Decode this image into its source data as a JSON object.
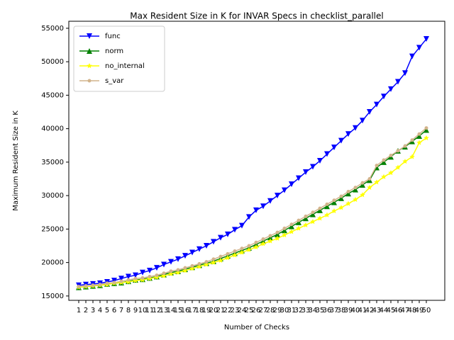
{
  "chart_data": {
    "type": "line",
    "title": "Max Resident Size in K for INVAR Specs in checklist_parallel",
    "x_label": "Number of Checks",
    "y_label": "Maximum Resident Size in K",
    "x": [
      1,
      2,
      3,
      4,
      5,
      6,
      7,
      8,
      9,
      10,
      11,
      12,
      13,
      14,
      15,
      16,
      17,
      18,
      19,
      20,
      21,
      22,
      23,
      24,
      25,
      26,
      27,
      28,
      29,
      30,
      31,
      32,
      33,
      34,
      35,
      36,
      37,
      38,
      39,
      40,
      41,
      42,
      43,
      44,
      45,
      46,
      47,
      48,
      49,
      50
    ],
    "xlim": [
      -0.4,
      52.6
    ],
    "xticks": [
      1,
      2,
      3,
      4,
      5,
      6,
      7,
      8,
      9,
      10,
      11,
      12,
      13,
      14,
      15,
      16,
      17,
      18,
      19,
      20,
      21,
      22,
      23,
      24,
      25,
      26,
      27,
      28,
      29,
      30,
      31,
      32,
      33,
      34,
      35,
      36,
      37,
      38,
      39,
      40,
      41,
      42,
      43,
      44,
      45,
      46,
      47,
      48,
      49,
      50
    ],
    "ylim": [
      14350,
      56050
    ],
    "yticks": [
      15000,
      20000,
      25000,
      30000,
      35000,
      40000,
      45000,
      50000,
      55000
    ],
    "legend": "upper left",
    "series": [
      {
        "name": "func",
        "color": "#0000ff",
        "marker": "v",
        "values": [
          16600,
          16700,
          16800,
          16900,
          17100,
          17300,
          17600,
          17900,
          18100,
          18500,
          18800,
          19200,
          19700,
          20100,
          20500,
          21000,
          21500,
          22000,
          22500,
          23100,
          23700,
          24200,
          24900,
          25500,
          26800,
          27800,
          28400,
          29200,
          30000,
          30800,
          31700,
          32600,
          33500,
          34300,
          35200,
          36200,
          37200,
          38200,
          39200,
          40100,
          41200,
          42500,
          43600,
          44800,
          45900,
          47000,
          48300,
          50800,
          52100,
          53400
        ]
      },
      {
        "name": "norm",
        "color": "#008000",
        "marker": "^",
        "values": [
          16300,
          16400,
          16500,
          16600,
          16800,
          16900,
          17000,
          17200,
          17400,
          17500,
          17700,
          17900,
          18200,
          18500,
          18700,
          19000,
          19300,
          19600,
          19900,
          20200,
          20600,
          21000,
          21400,
          21800,
          22200,
          22700,
          23200,
          23700,
          24200,
          24800,
          25400,
          26000,
          26600,
          27200,
          27800,
          28400,
          29000,
          29600,
          30300,
          30900,
          31600,
          32300,
          34200,
          35000,
          35800,
          36700,
          37300,
          38100,
          38900,
          39800
        ]
      },
      {
        "name": "no_internal",
        "color": "#ffff00",
        "marker": "*",
        "values": [
          16300,
          16400,
          16500,
          16600,
          16700,
          16900,
          17000,
          17100,
          17300,
          17400,
          17600,
          17800,
          18000,
          18300,
          18500,
          18800,
          19100,
          19400,
          19700,
          20000,
          20300,
          20700,
          21100,
          21500,
          21900,
          22300,
          22800,
          23200,
          23600,
          24100,
          24600,
          25100,
          25600,
          26100,
          26600,
          27100,
          27700,
          28200,
          28800,
          29400,
          30100,
          31200,
          32000,
          32800,
          33400,
          34200,
          35100,
          35800,
          37900,
          38600
        ]
      },
      {
        "name": "s_var",
        "color": "#d2b48c",
        "marker": "o",
        "values": [
          16400,
          16500,
          16600,
          16700,
          16900,
          17000,
          17200,
          17400,
          17600,
          17700,
          17900,
          18100,
          18400,
          18700,
          18900,
          19200,
          19500,
          19800,
          20100,
          20500,
          20900,
          21300,
          21700,
          22100,
          22500,
          23000,
          23500,
          24000,
          24500,
          25100,
          25700,
          26300,
          26900,
          27500,
          28100,
          28700,
          29300,
          29900,
          30600,
          31200,
          31900,
          32500,
          34500,
          35300,
          36000,
          36700,
          37400,
          38300,
          39200,
          40100
        ]
      }
    ]
  }
}
